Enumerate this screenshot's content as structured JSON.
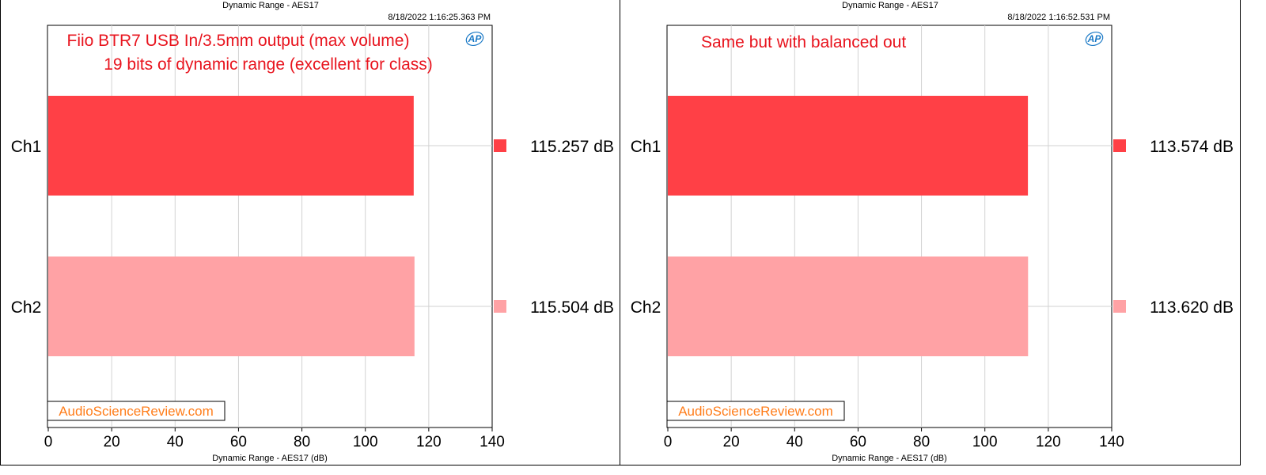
{
  "panels": [
    {
      "title": "Dynamic Range - AES17",
      "timestamp": "8/18/2022 1:16:25.363 PM",
      "annotation_lines": [
        "Fiio BTR7 USB In/3.5mm output (max volume)",
        "19 bits of dynamic range (excellent for class)"
      ],
      "watermark": "AudioScienceReview.com",
      "logo": "AP",
      "xlabel": "Dynamic Range - AES17 (dB)",
      "value_labels": [
        "115.257  dB",
        "115.504  dB"
      ]
    },
    {
      "title": "Dynamic Range - AES17",
      "timestamp": "8/18/2022 1:16:52.531 PM",
      "annotation_lines": [
        "Same but with balanced out"
      ],
      "watermark": "AudioScienceReview.com",
      "logo": "AP",
      "xlabel": "Dynamic Range - AES17 (dB)",
      "value_labels": [
        "113.574  dB",
        "113.620  dB"
      ]
    }
  ],
  "chart_data": [
    {
      "type": "bar",
      "orientation": "horizontal",
      "title": "Dynamic Range - AES17",
      "xlabel": "Dynamic Range - AES17 (dB)",
      "ylabel": "",
      "categories": [
        "Ch1",
        "Ch2"
      ],
      "values": [
        115.257,
        115.504
      ],
      "colors": [
        "#ff4046",
        "#ffa2a5"
      ],
      "xlim": [
        0,
        140
      ],
      "xticks": [
        0,
        20,
        40,
        60,
        80,
        100,
        120,
        140
      ],
      "grid": true,
      "legend": "right"
    },
    {
      "type": "bar",
      "orientation": "horizontal",
      "title": "Dynamic Range - AES17",
      "xlabel": "Dynamic Range - AES17 (dB)",
      "ylabel": "",
      "categories": [
        "Ch1",
        "Ch2"
      ],
      "values": [
        113.574,
        113.62
      ],
      "colors": [
        "#ff4046",
        "#ffa2a5"
      ],
      "xlim": [
        0,
        140
      ],
      "xticks": [
        0,
        20,
        40,
        60,
        80,
        100,
        120,
        140
      ],
      "grid": true,
      "legend": "right"
    }
  ]
}
